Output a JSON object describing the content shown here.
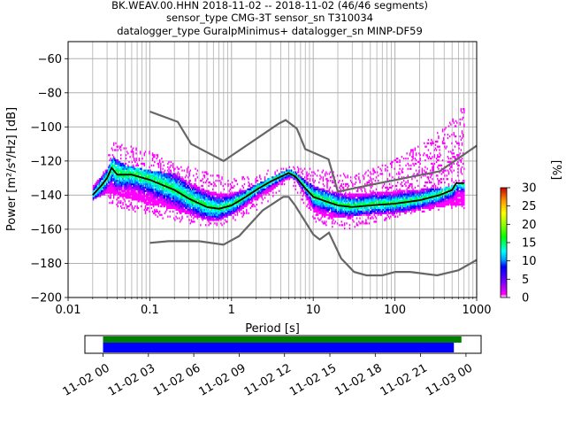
{
  "title_lines": [
    "BK.WEAV.00.HHN   2018-11-02 -- 2018-11-02  (46/46 segments)",
    "sensor_type CMG-3T sensor_sn T310034",
    "datalogger_type GuralpMinimus+ datalogger_sn MINP-DF59"
  ],
  "chart_data": {
    "type": "heatmap",
    "xlabel": "Period [s]",
    "ylabel": "Power [m²/s⁴/Hz] [dB]",
    "xscale": "log",
    "xlim": [
      0.01,
      1000
    ],
    "ylim": [
      -200,
      -50
    ],
    "x_ticks": [
      0.01,
      0.1,
      1,
      10,
      100,
      1000
    ],
    "x_tick_labels": [
      "0.01",
      "0.1",
      "1",
      "10",
      "100",
      "1000"
    ],
    "y_ticks": [
      -200,
      -180,
      -160,
      -140,
      -120,
      -100,
      -80,
      -60
    ],
    "y_tick_labels": [
      "−200",
      "−180",
      "−160",
      "−140",
      "−120",
      "−100",
      "−80",
      "−60"
    ],
    "grid": true,
    "colorbar": {
      "label": "[%]",
      "range": [
        0,
        30
      ],
      "ticks": [
        0,
        5,
        10,
        15,
        20,
        25,
        30
      ],
      "colors": [
        "#ffffff",
        "#ff00ff",
        "#0000ff",
        "#00ffff",
        "#00ff00",
        "#ffff00",
        "#ff9900",
        "#cc0000"
      ]
    },
    "noise_model_high": [
      [
        0.1,
        -91
      ],
      [
        0.22,
        -97
      ],
      [
        0.32,
        -110
      ],
      [
        0.8,
        -120
      ],
      [
        3.8,
        -98
      ],
      [
        4.6,
        -96
      ],
      [
        6.3,
        -101
      ],
      [
        8,
        -113
      ],
      [
        15.4,
        -119
      ],
      [
        20,
        -138
      ],
      [
        50,
        -134
      ],
      [
        354,
        -126
      ],
      [
        1000,
        -111
      ]
    ],
    "noise_model_low": [
      [
        0.1,
        -168
      ],
      [
        0.17,
        -167
      ],
      [
        0.4,
        -167
      ],
      [
        0.8,
        -169
      ],
      [
        1.24,
        -164
      ],
      [
        2.4,
        -149
      ],
      [
        4.3,
        -141
      ],
      [
        5,
        -141
      ],
      [
        6,
        -146
      ],
      [
        10,
        -163
      ],
      [
        12,
        -166
      ],
      [
        15.6,
        -162
      ],
      [
        21.9,
        -177
      ],
      [
        31.6,
        -185
      ],
      [
        45,
        -187
      ],
      [
        70,
        -187
      ],
      [
        101,
        -185
      ],
      [
        154,
        -185
      ],
      [
        328,
        -187
      ],
      [
        600,
        -184
      ],
      [
        1000,
        -178
      ]
    ],
    "mode_curve": [
      [
        0.02,
        -140
      ],
      [
        0.026,
        -134
      ],
      [
        0.03,
        -130
      ],
      [
        0.034,
        -124
      ],
      [
        0.04,
        -128
      ],
      [
        0.06,
        -128
      ],
      [
        0.1,
        -131
      ],
      [
        0.2,
        -137
      ],
      [
        0.3,
        -142
      ],
      [
        0.5,
        -147
      ],
      [
        0.7,
        -148
      ],
      [
        1,
        -146
      ],
      [
        1.5,
        -141
      ],
      [
        2,
        -137
      ],
      [
        3,
        -132
      ],
      [
        5,
        -127
      ],
      [
        6,
        -129
      ],
      [
        8,
        -136
      ],
      [
        10,
        -141
      ],
      [
        15,
        -144
      ],
      [
        20,
        -146
      ],
      [
        30,
        -147
      ],
      [
        50,
        -146
      ],
      [
        100,
        -145
      ],
      [
        200,
        -143
      ],
      [
        350,
        -140
      ],
      [
        500,
        -137
      ],
      [
        560,
        -133
      ],
      [
        700,
        -133
      ]
    ],
    "density_band": {
      "upper": [
        [
          0.02,
          -135
        ],
        [
          0.03,
          -125
        ],
        [
          0.035,
          -118
        ],
        [
          0.05,
          -123
        ],
        [
          0.1,
          -126
        ],
        [
          0.2,
          -128
        ],
        [
          0.3,
          -133
        ],
        [
          0.5,
          -138
        ],
        [
          0.8,
          -140
        ],
        [
          1,
          -139
        ],
        [
          1.5,
          -137
        ],
        [
          2,
          -134
        ],
        [
          3,
          -130
        ],
        [
          5,
          -125
        ],
        [
          6,
          -127
        ],
        [
          8,
          -132
        ],
        [
          10,
          -135
        ],
        [
          15,
          -138
        ],
        [
          20,
          -139
        ],
        [
          30,
          -140
        ],
        [
          50,
          -139
        ],
        [
          100,
          -138
        ],
        [
          200,
          -137
        ],
        [
          400,
          -136
        ],
        [
          700,
          -133
        ]
      ],
      "lower": [
        [
          0.02,
          -143
        ],
        [
          0.03,
          -139
        ],
        [
          0.05,
          -142
        ],
        [
          0.1,
          -146
        ],
        [
          0.2,
          -149
        ],
        [
          0.3,
          -152
        ],
        [
          0.5,
          -155
        ],
        [
          0.7,
          -155
        ],
        [
          1,
          -152
        ],
        [
          1.5,
          -147
        ],
        [
          2,
          -143
        ],
        [
          3,
          -138
        ],
        [
          5,
          -130
        ],
        [
          6,
          -132
        ],
        [
          8,
          -141
        ],
        [
          10,
          -150
        ],
        [
          15,
          -153
        ],
        [
          20,
          -154
        ],
        [
          30,
          -153
        ],
        [
          50,
          -152
        ],
        [
          100,
          -151
        ],
        [
          200,
          -149
        ],
        [
          400,
          -147
        ],
        [
          700,
          -146
        ]
      ]
    },
    "outer_spread": {
      "upper": [
        [
          0.03,
          -110
        ],
        [
          0.05,
          -112
        ],
        [
          0.1,
          -116
        ],
        [
          0.2,
          -122
        ],
        [
          0.3,
          -125
        ],
        [
          0.5,
          -128
        ],
        [
          1,
          -132
        ],
        [
          5,
          -124
        ],
        [
          10,
          -126
        ],
        [
          20,
          -128
        ],
        [
          30,
          -130
        ],
        [
          50,
          -125
        ],
        [
          100,
          -120
        ],
        [
          200,
          -112
        ],
        [
          400,
          -102
        ],
        [
          700,
          -88
        ]
      ],
      "lower": [
        [
          0.03,
          -144
        ],
        [
          0.05,
          -148
        ],
        [
          0.1,
          -152
        ],
        [
          0.3,
          -156
        ],
        [
          0.5,
          -158
        ],
        [
          0.8,
          -157
        ],
        [
          1,
          -155
        ],
        [
          2,
          -148
        ],
        [
          3,
          -142
        ],
        [
          5,
          -132
        ],
        [
          8,
          -146
        ],
        [
          10,
          -155
        ],
        [
          15,
          -158
        ],
        [
          20,
          -160
        ],
        [
          30,
          -159
        ],
        [
          50,
          -156
        ],
        [
          100,
          -153
        ],
        [
          200,
          -150
        ],
        [
          400,
          -148
        ],
        [
          700,
          -148
        ]
      ]
    },
    "timeline": {
      "tick_labels": [
        "11-02 00",
        "11-02 03",
        "11-02 06",
        "11-02 09",
        "11-02 12",
        "11-02 15",
        "11-02 18",
        "11-02 21",
        "11-03 00"
      ],
      "tick_hours": [
        0,
        3,
        6,
        9,
        12,
        15,
        18,
        21,
        24
      ],
      "range_hours": [
        -1.2,
        25
      ],
      "data_available_hours": [
        0,
        23.7
      ],
      "psd_coverage_hours": [
        0,
        23.2
      ]
    }
  }
}
